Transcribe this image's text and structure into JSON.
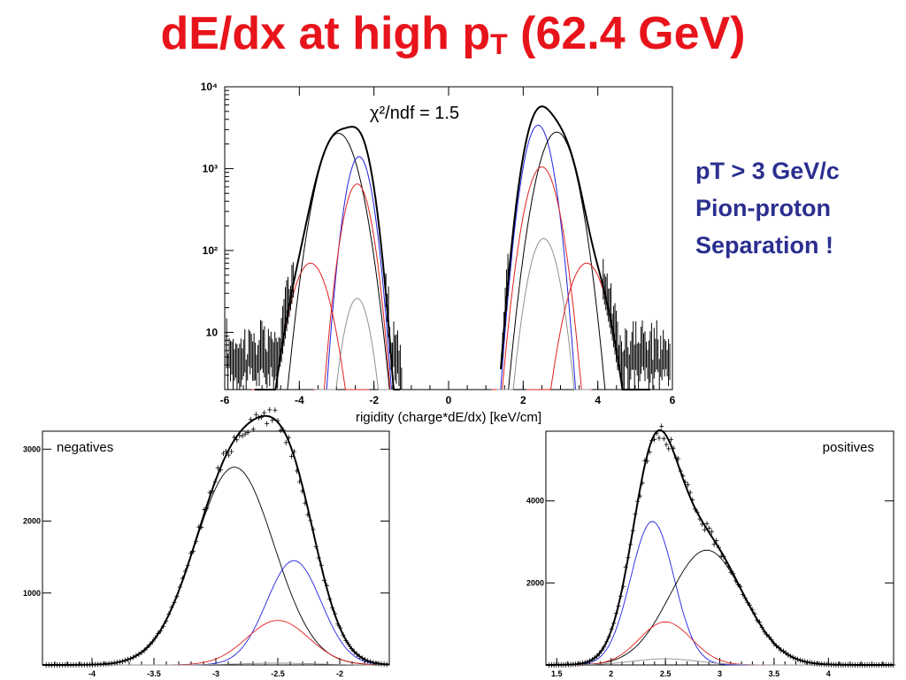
{
  "slide": {
    "title_main": "dE/dx at high p",
    "title_sub": "T",
    "title_tail": " (62.4 GeV)",
    "side_text": [
      "pT > 3 GeV/c",
      "Pion-proton",
      "Separation !"
    ]
  },
  "colors": {
    "title": "#e8141b",
    "side_text": "#2b2f8f",
    "data": "#000000",
    "fit_blue": "#2020e0",
    "fit_red": "#e02020",
    "fit_gray": "#909090",
    "fit_black": "#000000"
  },
  "chart_data": [
    {
      "type": "line",
      "title": "",
      "annotation": "χ²/ndf = 1.5",
      "xlabel": "rigidity (charge*dE/dx) [keV/cm]",
      "ylabel": "",
      "yscale": "log",
      "xlim": [
        -6,
        6
      ],
      "ylim": [
        2,
        10000
      ],
      "x_ticks": [
        "-6",
        "-4",
        "-2",
        "0",
        "2",
        "4",
        "6"
      ],
      "y_ticks": [
        {
          "v": 10,
          "label": "10"
        },
        {
          "v": 100,
          "label": "10²"
        },
        {
          "v": 1000,
          "label": "10³"
        },
        {
          "v": 10000,
          "label": "10⁴"
        }
      ],
      "components": [
        {
          "color": "black",
          "side": "neg",
          "mu": -2.95,
          "sigma": 0.36,
          "amp": 2700
        },
        {
          "color": "blue",
          "side": "neg",
          "mu": -2.4,
          "sigma": 0.24,
          "amp": 1400
        },
        {
          "color": "red",
          "side": "neg",
          "mu": -2.45,
          "sigma": 0.26,
          "amp": 650
        },
        {
          "color": "gray",
          "side": "neg",
          "mu": -2.45,
          "sigma": 0.25,
          "amp": 26
        },
        {
          "color": "red",
          "side": "neg",
          "mu": -3.7,
          "sigma": 0.35,
          "amp": 70
        },
        {
          "color": "blue",
          "side": "pos",
          "mu": 2.4,
          "sigma": 0.26,
          "amp": 3400
        },
        {
          "color": "black",
          "side": "pos",
          "mu": 2.9,
          "sigma": 0.34,
          "amp": 2800
        },
        {
          "color": "red",
          "side": "pos",
          "mu": 2.5,
          "sigma": 0.3,
          "amp": 1050
        },
        {
          "color": "gray",
          "side": "pos",
          "mu": 2.55,
          "sigma": 0.28,
          "amp": 140
        },
        {
          "color": "red",
          "side": "pos",
          "mu": 3.7,
          "sigma": 0.36,
          "amp": 70
        }
      ]
    },
    {
      "type": "line",
      "title": "",
      "legend_text": "negatives",
      "xlabel": "",
      "ylabel": "",
      "xlim": [
        -4.4,
        -1.6
      ],
      "ylim": [
        0,
        3250
      ],
      "x_ticks": [
        "-4",
        "-3.5",
        "-3",
        "-2.5",
        "-2"
      ],
      "y_ticks": [
        "1000",
        "2000",
        "3000"
      ],
      "components": [
        {
          "color": "black",
          "mu": -2.85,
          "sigma": 0.32,
          "amp": 2750
        },
        {
          "color": "blue",
          "mu": -2.37,
          "sigma": 0.22,
          "amp": 1450
        },
        {
          "color": "red",
          "mu": -2.5,
          "sigma": 0.25,
          "amp": 620
        },
        {
          "color": "gray",
          "mu": -2.5,
          "sigma": 0.3,
          "amp": 25
        }
      ]
    },
    {
      "type": "line",
      "title": "",
      "legend_text": "positives",
      "xlabel": "",
      "ylabel": "",
      "xlim": [
        1.4,
        4.6
      ],
      "ylim": [
        0,
        5700
      ],
      "x_ticks": [
        "1.5",
        "2",
        "2.5",
        "3",
        "3.5",
        "4"
      ],
      "y_ticks": [
        "2000",
        "4000"
      ],
      "components": [
        {
          "color": "blue",
          "mu": 2.38,
          "sigma": 0.2,
          "amp": 3500
        },
        {
          "color": "black",
          "mu": 2.88,
          "sigma": 0.34,
          "amp": 2800
        },
        {
          "color": "red",
          "mu": 2.5,
          "sigma": 0.24,
          "amp": 1050
        },
        {
          "color": "gray",
          "mu": 2.5,
          "sigma": 0.3,
          "amp": 150
        }
      ]
    }
  ]
}
